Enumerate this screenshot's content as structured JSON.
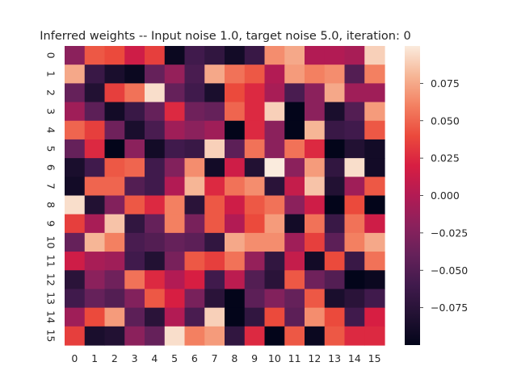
{
  "chart_data": {
    "type": "heatmap",
    "title": "Inferred weights -- Input noise 1.0, target noise 5.0, iteration: 0",
    "xlabel": "",
    "ylabel": "",
    "x": [
      "0",
      "1",
      "2",
      "3",
      "4",
      "5",
      "6",
      "7",
      "8",
      "9",
      "10",
      "11",
      "12",
      "13",
      "14",
      "15"
    ],
    "y": [
      "0",
      "1",
      "2",
      "3",
      "4",
      "5",
      "6",
      "7",
      "8",
      "9",
      "10",
      "11",
      "12",
      "13",
      "14",
      "15"
    ],
    "vmin": -0.1,
    "vmax": 0.1,
    "colormap": "rocket",
    "colorbar_ticks": [
      -0.075,
      -0.05,
      -0.025,
      0.0,
      0.025,
      0.05,
      0.075
    ],
    "colorbar_tick_labels": [
      "−0.075",
      "−0.050",
      "−0.025",
      "0.000",
      "0.025",
      "0.050",
      "0.075"
    ],
    "values": [
      [
        -0.02,
        0.045,
        0.04,
        0.015,
        0.035,
        -0.095,
        -0.06,
        -0.07,
        -0.09,
        -0.065,
        0.065,
        0.075,
        0.0,
        0.0,
        -0.005,
        0.09
      ],
      [
        0.075,
        -0.065,
        -0.085,
        -0.095,
        -0.04,
        -0.015,
        -0.055,
        0.075,
        0.055,
        0.045,
        0.0,
        0.07,
        0.06,
        0.065,
        -0.05,
        0.06
      ],
      [
        -0.04,
        -0.08,
        0.035,
        0.055,
        0.095,
        -0.04,
        -0.06,
        -0.085,
        0.04,
        0.025,
        -0.005,
        -0.055,
        -0.02,
        0.075,
        -0.01,
        -0.01
      ],
      [
        -0.01,
        -0.045,
        -0.09,
        -0.065,
        -0.04,
        0.025,
        -0.035,
        -0.04,
        0.05,
        0.025,
        0.09,
        -0.1,
        -0.02,
        -0.085,
        -0.05,
        0.07
      ],
      [
        0.05,
        0.035,
        -0.035,
        -0.085,
        -0.055,
        -0.01,
        -0.02,
        -0.01,
        -0.1,
        0.025,
        -0.02,
        -0.1,
        0.08,
        -0.065,
        -0.06,
        0.045
      ],
      [
        -0.04,
        0.025,
        -0.1,
        -0.02,
        -0.09,
        -0.06,
        -0.065,
        0.09,
        -0.045,
        0.055,
        -0.02,
        0.055,
        0.025,
        -0.1,
        -0.08,
        -0.09
      ],
      [
        -0.085,
        -0.06,
        0.045,
        0.05,
        -0.06,
        -0.025,
        0.065,
        -0.09,
        0.015,
        -0.08,
        0.1,
        -0.02,
        0.07,
        -0.07,
        0.095,
        -0.09
      ],
      [
        -0.09,
        0.05,
        0.05,
        -0.05,
        -0.06,
        0.0,
        0.08,
        0.025,
        0.055,
        0.065,
        -0.075,
        0.01,
        0.085,
        -0.08,
        -0.01,
        0.045
      ],
      [
        0.095,
        -0.08,
        -0.025,
        0.045,
        0.025,
        0.06,
        -0.075,
        0.045,
        0.015,
        0.045,
        0.055,
        -0.02,
        0.015,
        -0.1,
        0.04,
        -0.1
      ],
      [
        0.035,
        -0.005,
        0.085,
        -0.07,
        -0.04,
        0.06,
        -0.03,
        0.045,
        0.0,
        0.04,
        0.07,
        -0.09,
        0.055,
        -0.065,
        0.055,
        0.015
      ],
      [
        -0.04,
        0.08,
        0.06,
        -0.055,
        -0.05,
        -0.04,
        -0.045,
        -0.07,
        0.075,
        0.065,
        0.065,
        -0.01,
        0.035,
        -0.045,
        0.06,
        0.075
      ],
      [
        0.015,
        -0.005,
        -0.01,
        -0.06,
        -0.08,
        -0.03,
        0.045,
        0.035,
        0.055,
        -0.015,
        -0.07,
        0.01,
        -0.09,
        0.04,
        -0.065,
        0.055
      ],
      [
        -0.075,
        -0.02,
        -0.035,
        0.055,
        0.025,
        0.0,
        0.02,
        -0.06,
        0.005,
        -0.05,
        -0.075,
        0.045,
        -0.035,
        -0.05,
        -0.1,
        -0.095
      ],
      [
        -0.06,
        -0.04,
        -0.05,
        -0.025,
        0.045,
        0.02,
        -0.03,
        -0.075,
        -0.1,
        -0.045,
        -0.025,
        -0.04,
        0.045,
        -0.085,
        -0.075,
        -0.06
      ],
      [
        -0.01,
        0.04,
        0.07,
        -0.045,
        -0.075,
        0.0,
        -0.055,
        0.09,
        -0.1,
        -0.07,
        0.04,
        -0.045,
        0.065,
        0.04,
        -0.06,
        0.02
      ],
      [
        0.035,
        -0.085,
        -0.08,
        -0.02,
        -0.04,
        0.095,
        0.06,
        0.07,
        -0.07,
        0.025,
        -0.1,
        0.045,
        -0.095,
        0.045,
        0.025,
        0.025
      ]
    ]
  }
}
